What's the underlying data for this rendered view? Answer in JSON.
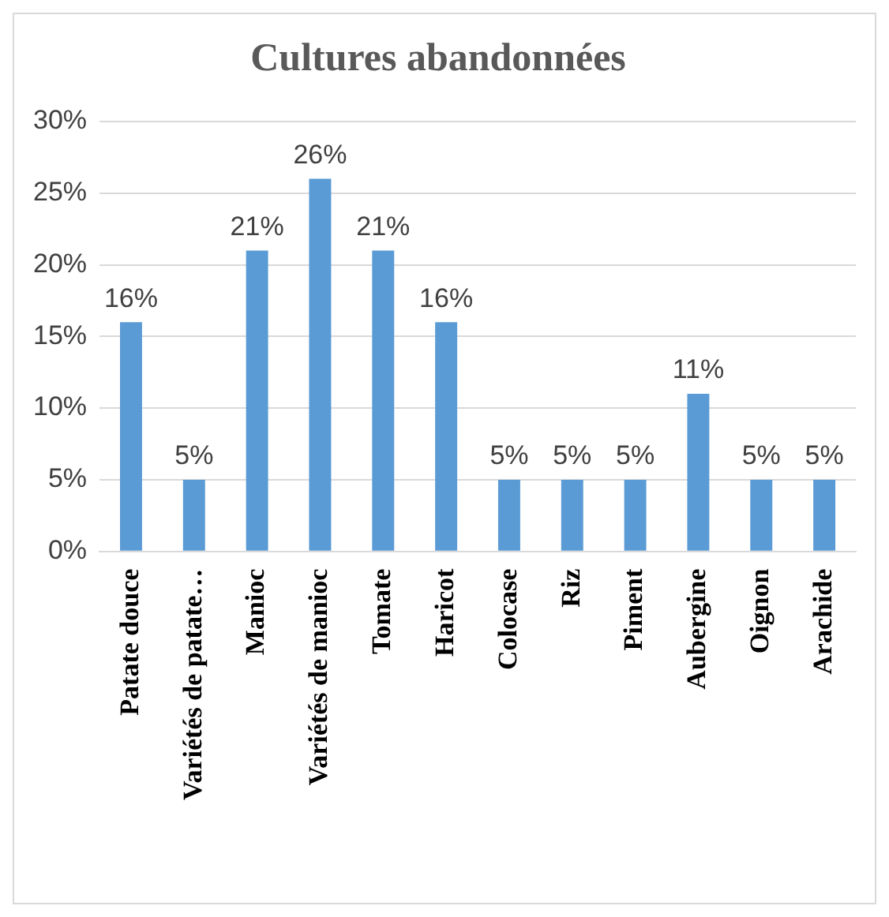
{
  "chart_data": {
    "type": "bar",
    "title": "Cultures abandonnées",
    "categories": [
      "Patate douce",
      "Variétés de patate…",
      "Manioc",
      "Variétés de manioc",
      "Tomate",
      "Haricot",
      "Colocase",
      "Riz",
      "Piment",
      "Aubergine",
      "Oignon",
      "Arachide"
    ],
    "values": [
      16,
      5,
      21,
      26,
      21,
      16,
      5,
      5,
      5,
      11,
      5,
      5
    ],
    "value_labels": [
      "16%",
      "5%",
      "21%",
      "26%",
      "21%",
      "16%",
      "5%",
      "5%",
      "5%",
      "11%",
      "5%",
      "5%"
    ],
    "color": "#5b9bd5",
    "ylim": [
      0,
      30
    ],
    "yticks": [
      {
        "value": 0,
        "label": "0%"
      },
      {
        "value": 5,
        "label": "5%"
      },
      {
        "value": 10,
        "label": "10%"
      },
      {
        "value": 15,
        "label": "15%"
      },
      {
        "value": 20,
        "label": "20%"
      },
      {
        "value": 25,
        "label": "25%"
      },
      {
        "value": 30,
        "label": "30%"
      }
    ],
    "grid": "y",
    "legend": false
  }
}
